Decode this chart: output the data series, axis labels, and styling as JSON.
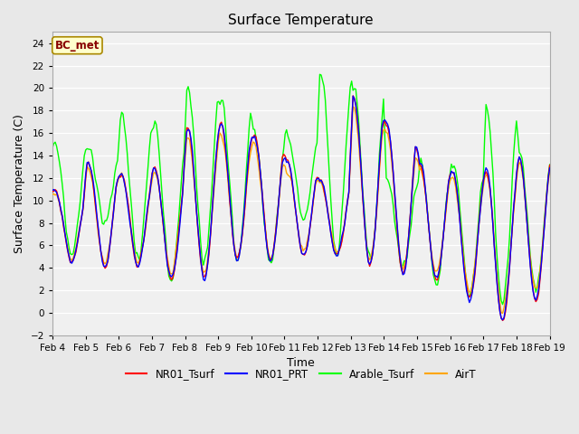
{
  "title": "Surface Temperature",
  "xlabel": "Time",
  "ylabel": "Surface Temperature (C)",
  "ylim": [
    -2,
    25
  ],
  "yticks": [
    -2,
    0,
    2,
    4,
    6,
    8,
    10,
    12,
    14,
    16,
    18,
    20,
    22,
    24
  ],
  "xtick_labels": [
    "Feb 4",
    "Feb 5",
    "Feb 6",
    "Feb 7",
    "Feb 8",
    "Feb 9",
    "Feb 10",
    "Feb 11",
    "Feb 12",
    "Feb 13",
    "Feb 14",
    "Feb 15",
    "Feb 16",
    "Feb 17",
    "Feb 18",
    "Feb 19"
  ],
  "annotation_text": "BC_met",
  "annotation_bg": "#FFFFCC",
  "annotation_border": "#AA8800",
  "annotation_text_color": "#880000",
  "line_colors": [
    "red",
    "blue",
    "lime",
    "orange"
  ],
  "legend_labels": [
    "NR01_Tsurf",
    "NR01_PRT",
    "Arable_Tsurf",
    "AirT"
  ],
  "background_color": "#E8E8E8",
  "plot_bg": "#F0F0F0",
  "figsize": [
    6.4,
    4.8
  ],
  "dpi": 100
}
